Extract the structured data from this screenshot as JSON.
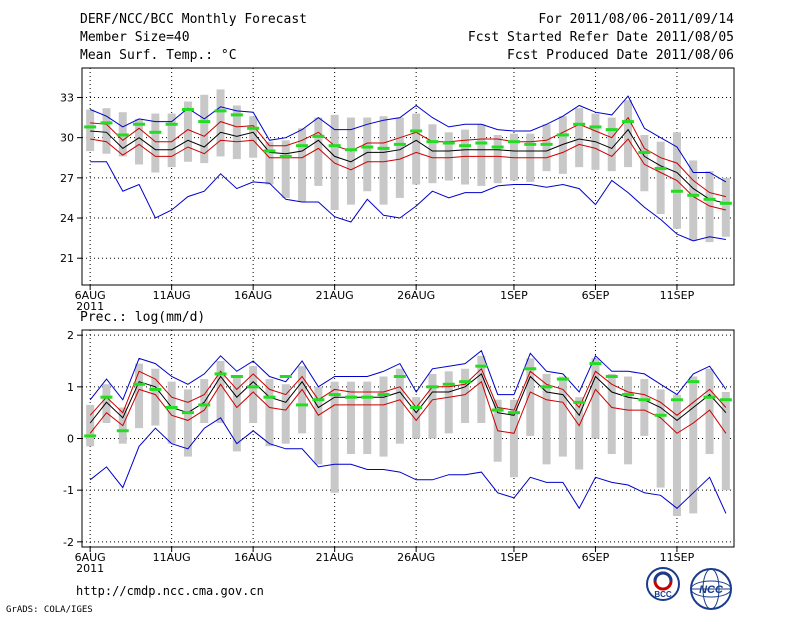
{
  "header": {
    "title": "DERF/NCC/BCC Monthly Forecast",
    "member": "Member Size=40",
    "variable": "Mean Surf. Temp.: °C",
    "range": "For 2011/08/06-2011/09/14",
    "started": "Fcst Started Refer Date 2011/08/05",
    "produced": "Fcst Produced Date 2011/08/06"
  },
  "footer": {
    "url": "http://cmdp.ncc.cma.gov.cn",
    "grads": "GrADS: COLA/IGES",
    "logo_bcc": "BCC",
    "logo_ncc": "NCC"
  },
  "chart_data": [
    {
      "type": "box",
      "title": "Mean Surf. Temp.: °C",
      "ylim": [
        19,
        35.2
      ],
      "yticks": [
        21,
        24,
        27,
        30,
        33
      ],
      "xtick_labels": [
        "6AUG",
        "11AUG",
        "16AUG",
        "21AUG",
        "26AUG",
        "1SEP",
        "6SEP",
        "11SEP"
      ],
      "xtick_days": [
        0,
        5,
        10,
        15,
        20,
        26,
        31,
        36
      ],
      "year_label": "2011",
      "days": 40,
      "colors": {
        "mean": "#000000",
        "spread": "#cc0000",
        "extreme": "#0000cc",
        "box": "#c8c8c8",
        "marker": "#22dd22"
      },
      "mean": [
        30.5,
        30.4,
        29.2,
        30.0,
        29.1,
        29.1,
        29.8,
        29.3,
        30.4,
        30.1,
        30.4,
        28.9,
        28.8,
        29.0,
        29.8,
        28.6,
        28.2,
        28.9,
        28.9,
        29.1,
        29.8,
        29.0,
        29.0,
        29.1,
        29.1,
        29.1,
        29.0,
        29.0,
        29.0,
        29.5,
        29.9,
        29.7,
        29.2,
        30.6,
        28.6,
        27.9,
        27.4,
        26.2,
        25.4,
        25.1
      ],
      "upper": [
        31.1,
        31.0,
        29.8,
        30.7,
        29.7,
        29.7,
        30.6,
        30.1,
        31.2,
        30.8,
        30.9,
        29.4,
        29.4,
        29.8,
        30.4,
        29.4,
        29.0,
        29.6,
        29.6,
        30.0,
        30.4,
        29.7,
        29.7,
        29.8,
        29.9,
        29.9,
        29.7,
        29.7,
        29.8,
        30.4,
        31.0,
        30.5,
        30.0,
        31.5,
        29.2,
        28.5,
        28.1,
        26.8,
        25.9,
        25.6
      ],
      "lower": [
        29.9,
        29.7,
        28.7,
        29.5,
        28.6,
        28.6,
        29.3,
        28.8,
        29.8,
        29.7,
        29.8,
        28.5,
        28.5,
        28.5,
        29.2,
        28.1,
        27.6,
        28.2,
        28.2,
        28.4,
        28.9,
        28.5,
        28.5,
        28.6,
        28.6,
        28.6,
        28.5,
        28.5,
        28.5,
        28.9,
        29.5,
        29.2,
        28.6,
        29.9,
        28.0,
        27.4,
        26.8,
        25.6,
        24.9,
        24.6
      ],
      "max": [
        32.1,
        31.6,
        30.8,
        31.4,
        31.2,
        31.2,
        32.2,
        31.4,
        32.3,
        32.0,
        31.9,
        29.8,
        30.0,
        30.6,
        31.5,
        30.6,
        30.6,
        31.0,
        31.3,
        31.5,
        32.4,
        31.5,
        30.8,
        31.0,
        31.0,
        30.6,
        30.5,
        30.5,
        31.0,
        31.6,
        32.4,
        31.9,
        31.7,
        33.1,
        30.7,
        30.0,
        29.3,
        27.4,
        27.4,
        26.7
      ],
      "min": [
        28.2,
        28.2,
        26.0,
        26.5,
        24.0,
        24.6,
        25.6,
        26.0,
        27.3,
        26.2,
        26.7,
        26.6,
        25.4,
        25.2,
        25.2,
        24.1,
        23.7,
        25.4,
        24.2,
        24.0,
        24.9,
        26.0,
        25.5,
        25.9,
        25.9,
        26.4,
        26.5,
        26.5,
        26.3,
        26.5,
        26.2,
        25.0,
        26.8,
        25.9,
        24.8,
        23.9,
        22.8,
        22.3,
        22.6,
        22.4
      ],
      "box_top": [
        32.1,
        32.2,
        31.9,
        31.4,
        31.8,
        31.8,
        32.7,
        33.2,
        33.6,
        32.4,
        31.6,
        29.7,
        29.8,
        30.7,
        31.5,
        31.7,
        31.5,
        31.5,
        31.6,
        31.5,
        31.8,
        31.0,
        30.4,
        30.6,
        31.0,
        30.2,
        30.3,
        30.3,
        31.0,
        31.6,
        32.2,
        31.8,
        31.5,
        32.8,
        30.2,
        29.7,
        30.4,
        28.3,
        27.5,
        27.0
      ],
      "box_bottom": [
        29.0,
        28.8,
        28.6,
        28.0,
        27.4,
        27.8,
        28.2,
        28.1,
        28.6,
        28.4,
        28.5,
        26.5,
        25.5,
        25.2,
        26.4,
        24.6,
        25.0,
        26.0,
        25.0,
        25.5,
        26.5,
        26.6,
        26.8,
        26.5,
        26.4,
        26.6,
        26.8,
        26.7,
        27.5,
        27.3,
        27.8,
        27.6,
        27.5,
        27.8,
        26.0,
        24.3,
        23.2,
        22.3,
        22.2,
        22.6
      ],
      "marker": [
        30.8,
        31.1,
        30.2,
        31.0,
        30.4,
        31.0,
        32.1,
        31.2,
        32.0,
        31.7,
        30.7,
        29.0,
        28.6,
        29.4,
        30.1,
        29.4,
        29.1,
        29.3,
        29.2,
        29.5,
        30.5,
        29.7,
        29.6,
        29.4,
        29.6,
        29.3,
        29.7,
        29.5,
        29.5,
        30.2,
        31.0,
        30.8,
        30.6,
        31.2,
        28.9,
        27.7,
        26.0,
        25.7,
        25.4,
        25.1
      ]
    },
    {
      "type": "box",
      "title": "Prec.: log(mm/d)",
      "ylim": [
        -2.1,
        2.1
      ],
      "yticks": [
        -2,
        -1,
        0,
        1,
        2
      ],
      "xtick_labels": [
        "6AUG",
        "11AUG",
        "16AUG",
        "21AUG",
        "26AUG",
        "1SEP",
        "6SEP",
        "11SEP"
      ],
      "xtick_days": [
        0,
        5,
        10,
        15,
        20,
        26,
        31,
        36
      ],
      "year_label": "2011",
      "days": 40,
      "colors": {
        "mean": "#000000",
        "spread": "#cc0000",
        "extreme": "#0000cc",
        "box": "#c8c8c8",
        "marker": "#22dd22"
      },
      "mean": [
        0.3,
        0.7,
        0.4,
        1.1,
        1.0,
        0.6,
        0.5,
        0.7,
        1.2,
        0.8,
        1.1,
        0.8,
        0.7,
        1.1,
        0.6,
        0.8,
        0.8,
        0.8,
        0.8,
        0.9,
        0.5,
        0.9,
        0.9,
        1.0,
        1.25,
        0.5,
        0.45,
        1.2,
        0.9,
        0.85,
        0.45,
        1.2,
        0.9,
        0.8,
        0.75,
        0.6,
        0.35,
        0.6,
        0.85,
        0.5
      ],
      "upper": [
        0.45,
        0.8,
        0.5,
        1.3,
        1.15,
        0.8,
        0.7,
        0.85,
        1.3,
        0.95,
        1.25,
        0.95,
        0.85,
        1.2,
        0.75,
        0.95,
        0.9,
        0.9,
        0.9,
        1.0,
        0.6,
        1.0,
        1.0,
        1.05,
        1.35,
        0.6,
        0.55,
        1.3,
        1.05,
        0.95,
        0.6,
        1.3,
        1.05,
        0.9,
        0.85,
        0.7,
        0.45,
        0.7,
        0.95,
        0.6
      ],
      "lower": [
        0.1,
        0.5,
        0.25,
        0.95,
        0.85,
        0.45,
        0.35,
        0.55,
        1.05,
        0.6,
        0.9,
        0.6,
        0.55,
        0.95,
        0.45,
        0.65,
        0.65,
        0.65,
        0.65,
        0.75,
        0.35,
        0.75,
        0.8,
        0.85,
        1.1,
        0.15,
        0.1,
        0.9,
        0.75,
        0.7,
        0.25,
        0.95,
        0.6,
        0.55,
        0.55,
        0.4,
        0.1,
        0.3,
        0.55,
        0.1
      ],
      "max": [
        0.75,
        1.15,
        0.75,
        1.55,
        1.45,
        1.2,
        1.05,
        1.25,
        1.6,
        1.3,
        1.5,
        1.2,
        1.1,
        1.5,
        1.0,
        1.2,
        1.2,
        1.2,
        1.3,
        1.45,
        0.9,
        1.35,
        1.4,
        1.45,
        1.7,
        0.85,
        0.85,
        1.65,
        1.3,
        1.25,
        0.9,
        1.6,
        1.3,
        1.3,
        1.25,
        1.05,
        0.85,
        1.25,
        1.4,
        0.95
      ],
      "min": [
        -0.8,
        -0.55,
        -0.95,
        -0.15,
        0.2,
        -0.1,
        -0.2,
        0.2,
        0.4,
        -0.1,
        0.15,
        -0.1,
        -0.2,
        -0.2,
        -0.55,
        -0.5,
        -0.5,
        -0.6,
        -0.6,
        -0.65,
        -0.8,
        -0.8,
        -0.7,
        -0.7,
        -0.65,
        -1.05,
        -1.15,
        -0.75,
        -0.85,
        -0.85,
        -1.35,
        -0.75,
        -0.85,
        -0.9,
        -1.05,
        -1.1,
        -1.35,
        -1.05,
        -0.75,
        -1.45
      ],
      "box_top": [
        0.65,
        1.05,
        0.6,
        1.45,
        1.35,
        1.1,
        0.95,
        1.15,
        1.5,
        1.2,
        1.4,
        1.15,
        1.05,
        1.4,
        1.0,
        1.1,
        1.1,
        1.1,
        1.2,
        1.35,
        0.8,
        1.25,
        1.3,
        1.35,
        1.6,
        0.75,
        0.75,
        1.55,
        1.25,
        1.2,
        0.8,
        1.55,
        1.25,
        1.2,
        1.15,
        0.95,
        0.85,
        1.2,
        1.35,
        0.9
      ],
      "box_bottom": [
        -0.15,
        0.3,
        -0.1,
        0.2,
        0.25,
        -0.1,
        -0.35,
        0.3,
        0.3,
        -0.25,
        0.3,
        -0.15,
        -0.1,
        0.1,
        -0.5,
        -1.05,
        -0.3,
        -0.3,
        -0.35,
        -0.1,
        0.0,
        0.0,
        0.1,
        0.3,
        0.3,
        -0.45,
        -0.75,
        0.05,
        -0.5,
        -0.35,
        -0.6,
        0.0,
        -0.3,
        -0.5,
        0.05,
        -0.95,
        -1.5,
        -1.45,
        -0.3,
        -1.0
      ],
      "marker": [
        0.05,
        0.8,
        0.15,
        1.05,
        0.95,
        0.6,
        0.5,
        0.65,
        1.25,
        1.2,
        1.0,
        0.8,
        1.2,
        0.65,
        0.75,
        0.85,
        0.8,
        0.8,
        0.85,
        1.2,
        0.6,
        1.0,
        1.05,
        1.1,
        1.4,
        0.55,
        0.5,
        1.35,
        1.0,
        1.15,
        0.7,
        1.45,
        1.2,
        0.85,
        0.75,
        0.45,
        0.75,
        1.1,
        0.8,
        0.75
      ]
    }
  ]
}
